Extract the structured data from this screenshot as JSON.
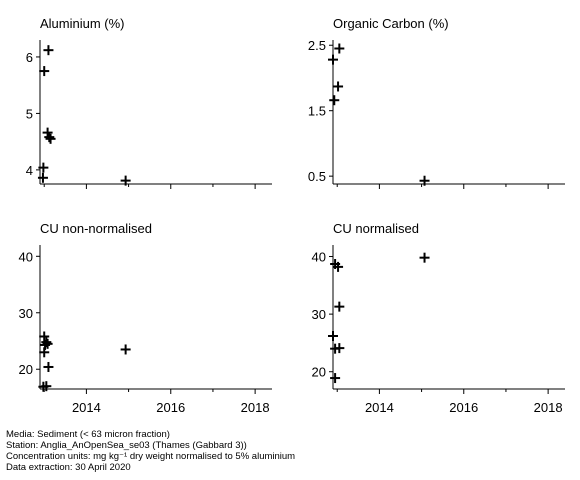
{
  "chart_data": [
    {
      "type": "scatter",
      "title": "Aluminium (%)",
      "xlim": [
        2012.9,
        2018.4
      ],
      "ylim": [
        3.75,
        6.3
      ],
      "xticks": [
        2014,
        2016,
        2018
      ],
      "xtick_labels": [],
      "yticks": [
        4,
        5,
        6
      ],
      "ytick_labels": [
        "4",
        "5",
        "6"
      ],
      "points": [
        {
          "x": 2013.1,
          "y": 6.12
        },
        {
          "x": 2013.0,
          "y": 5.75
        },
        {
          "x": 2013.08,
          "y": 4.66
        },
        {
          "x": 2013.12,
          "y": 4.58
        },
        {
          "x": 2013.15,
          "y": 4.55
        },
        {
          "x": 2012.98,
          "y": 4.04
        },
        {
          "x": 2012.97,
          "y": 3.86
        },
        {
          "x": 2014.93,
          "y": 3.81
        }
      ]
    },
    {
      "type": "scatter",
      "title": "Organic Carbon (%)",
      "xlim": [
        2012.9,
        2018.4
      ],
      "ylim": [
        0.38,
        2.58
      ],
      "xticks": [
        2014,
        2016,
        2018
      ],
      "xtick_labels": [],
      "yticks": [
        0.5,
        1.5,
        2.5
      ],
      "ytick_labels": [
        "0.5",
        "1.5",
        "2.5"
      ],
      "points": [
        {
          "x": 2013.05,
          "y": 2.45
        },
        {
          "x": 2012.9,
          "y": 2.28
        },
        {
          "x": 2013.02,
          "y": 1.87
        },
        {
          "x": 2012.93,
          "y": 1.66
        },
        {
          "x": 2015.07,
          "y": 0.43
        }
      ]
    },
    {
      "type": "scatter",
      "title": "CU non-normalised",
      "xlim": [
        2012.9,
        2018.4
      ],
      "ylim": [
        16.5,
        42
      ],
      "xticks": [
        2014,
        2016,
        2018
      ],
      "xtick_labels": [
        "2014",
        "2016",
        "2018"
      ],
      "yticks": [
        20,
        30,
        40
      ],
      "ytick_labels": [
        "20",
        "30",
        "40"
      ],
      "points": [
        {
          "x": 2013.0,
          "y": 25.8
        },
        {
          "x": 2013.05,
          "y": 24.8
        },
        {
          "x": 2013.02,
          "y": 24.3
        },
        {
          "x": 2013.08,
          "y": 24.5
        },
        {
          "x": 2013.0,
          "y": 23.0
        },
        {
          "x": 2014.93,
          "y": 23.5
        },
        {
          "x": 2013.1,
          "y": 20.4
        },
        {
          "x": 2013.05,
          "y": 17.0
        },
        {
          "x": 2012.98,
          "y": 16.9
        }
      ]
    },
    {
      "type": "scatter",
      "title": "CU normalised",
      "xlim": [
        2012.9,
        2018.4
      ],
      "ylim": [
        17,
        42
      ],
      "xticks": [
        2014,
        2016,
        2018
      ],
      "xtick_labels": [
        "2014",
        "2016",
        "2018"
      ],
      "yticks": [
        20,
        30,
        40
      ],
      "ytick_labels": [
        "20",
        "30",
        "40"
      ],
      "points": [
        {
          "x": 2012.95,
          "y": 38.7
        },
        {
          "x": 2013.02,
          "y": 38.2
        },
        {
          "x": 2015.07,
          "y": 39.8
        },
        {
          "x": 2013.05,
          "y": 31.3
        },
        {
          "x": 2012.9,
          "y": 26.2
        },
        {
          "x": 2012.95,
          "y": 24.0
        },
        {
          "x": 2013.05,
          "y": 24.1
        },
        {
          "x": 2012.95,
          "y": 18.9
        }
      ]
    }
  ],
  "footer": {
    "line1": "Media: Sediment (< 63 micron fraction)",
    "line2": "Station: Anglia_AnOpenSea_se03 (Thames (Gabbard 3))",
    "line3": "Concentration units:  mg kg⁻¹ dry weight normalised to 5% aluminium",
    "line4": "Data extraction: 30 April 2020"
  }
}
